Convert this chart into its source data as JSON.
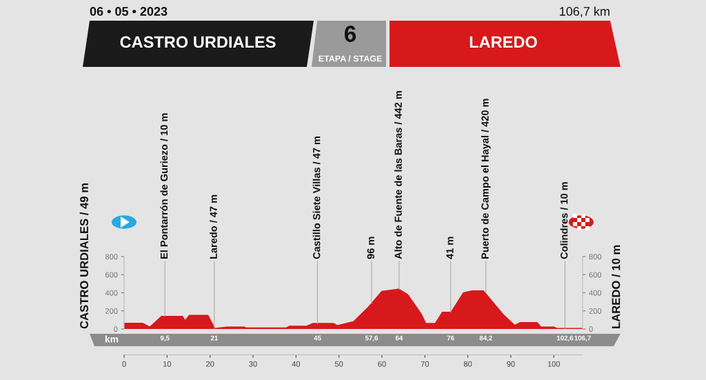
{
  "chart_data": {
    "type": "area",
    "title": "CASTRO URDIALES",
    "subtitle": "LAREDO",
    "ylabel": "CASTRO URDIALES / 49 m",
    "y2label": "LAREDO / 10 m",
    "x2label": "km",
    "x": [
      0,
      4.3,
      6,
      8.7,
      13.6,
      14.2,
      15.2,
      19.5,
      21.1,
      24,
      28,
      28.4,
      37.7,
      38.5,
      42.5,
      44,
      48.7,
      49.5,
      50.1,
      53.4,
      56.7,
      60,
      63.9,
      66,
      69.2,
      70.2,
      72.4,
      74.1,
      76.1,
      79,
      81,
      83.6,
      88.2,
      90.9,
      92.2,
      96.1,
      97,
      100,
      100.7,
      106.7
    ],
    "series": [
      {
        "color": "#d7191c",
        "values": [
          62,
          62,
          20,
          138,
          138,
          90,
          150,
          150,
          5,
          20,
          20,
          10,
          10,
          30,
          30,
          60,
          60,
          40,
          41,
          80,
          233,
          415,
          440,
          380,
          160,
          60,
          60,
          185,
          185,
          400,
          420,
          420,
          160,
          40,
          70,
          70,
          20,
          20,
          5,
          5
        ]
      }
    ],
    "xlim": [
      0,
      106.7
    ],
    "xticks": [
      0,
      10,
      20,
      30,
      40,
      50,
      60,
      70,
      80,
      90,
      100
    ],
    "x2lim": [
      0,
      106.7
    ],
    "x2ticks": [
      {
        "value": 9.5,
        "label": "9,5"
      },
      21,
      45,
      {
        "value": 57.6,
        "label": "57,6"
      },
      64,
      76,
      {
        "value": 84.2,
        "label": "84,2"
      },
      {
        "value": 102.6,
        "label": "102,6"
      },
      {
        "value": 106.7,
        "label": "106,7"
      }
    ],
    "ylim": [
      0,
      800
    ],
    "yticks": [
      0,
      200,
      400,
      600,
      800
    ],
    "y2lim": [
      0,
      800
    ],
    "y2ticks": [
      0,
      200,
      400,
      600,
      800
    ],
    "grid": false,
    "annotations": [
      "06 • 05 • 2023",
      "106,7 km",
      "6",
      "ETAPA / STAGE",
      {
        "text": "El Pontarrón de Guriezo / 10 m",
        "x": 9.5,
        "y": 140
      },
      {
        "text": "Laredo / 47 m",
        "x": 21,
        "y": 10
      },
      {
        "text": "Castillo Siete Villas / 47 m",
        "x": 45,
        "y": 60
      },
      {
        "text": "96 m",
        "x": 57.6,
        "y": 280
      },
      {
        "text": "Alto de Fuente de las Baras / 442 m",
        "x": 64,
        "y": 440
      },
      {
        "text": "41 m",
        "x": 76,
        "y": 185
      },
      {
        "text": "Puerto de Campo el Hayal / 420 m",
        "x": 84.2,
        "y": 405
      },
      {
        "text": "Colindres / 10 m",
        "x": 102.6,
        "y": 5
      }
    ]
  }
}
